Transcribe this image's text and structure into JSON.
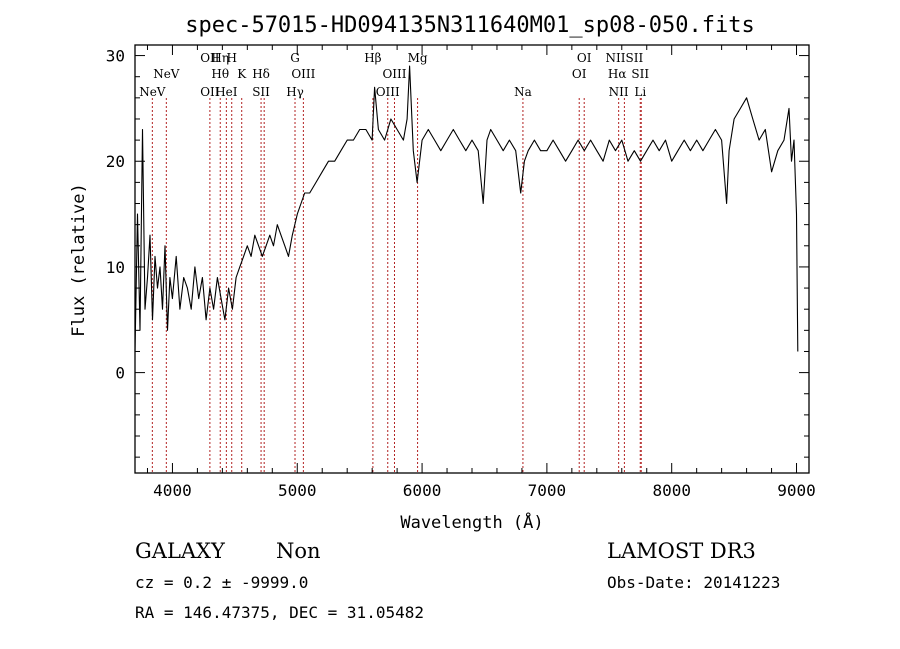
{
  "chart_data": {
    "type": "line",
    "title": "spec-57015-HD094135N311640M01_sp08-050.fits",
    "xlabel": "Wavelength (Å)",
    "ylabel": "Flux (relative)",
    "xlim": [
      3700,
      9100
    ],
    "ylim": [
      -9.5,
      31
    ],
    "xticks": [
      4000,
      5000,
      6000,
      7000,
      8000,
      9000
    ],
    "yticks": [
      0,
      10,
      20,
      30
    ],
    "grid": false,
    "legend": "none",
    "line_color": "#000000",
    "marker_color": "#b22222",
    "series": [
      {
        "x": [
          3700,
          3720,
          3740,
          3760,
          3780,
          3800,
          3820,
          3840,
          3860,
          3880,
          3900,
          3920,
          3940,
          3960,
          3980,
          4000,
          4030,
          4060,
          4090,
          4120,
          4150,
          4180,
          4210,
          4240,
          4270,
          4300,
          4330,
          4360,
          4390,
          4420,
          4450,
          4480,
          4510,
          4540,
          4570,
          4600,
          4630,
          4660,
          4690,
          4720,
          4750,
          4780,
          4810,
          4840,
          4870,
          4900,
          4930,
          4960,
          4980,
          5000,
          5030,
          5060,
          5100,
          5150,
          5200,
          5250,
          5300,
          5350,
          5400,
          5450,
          5500,
          5550,
          5600,
          5620,
          5650,
          5700,
          5750,
          5800,
          5850,
          5880,
          5900,
          5930,
          5960,
          5980,
          6000,
          6050,
          6100,
          6150,
          6200,
          6250,
          6300,
          6350,
          6400,
          6450,
          6490,
          6520,
          6550,
          6600,
          6650,
          6700,
          6750,
          6790,
          6820,
          6850,
          6900,
          6950,
          7000,
          7050,
          7100,
          7150,
          7200,
          7250,
          7300,
          7350,
          7400,
          7450,
          7500,
          7550,
          7600,
          7650,
          7700,
          7750,
          7800,
          7850,
          7900,
          7950,
          8000,
          8050,
          8100,
          8150,
          8200,
          8250,
          8300,
          8350,
          8400,
          8440,
          8460,
          8500,
          8550,
          8600,
          8650,
          8700,
          8750,
          8800,
          8850,
          8900,
          8940,
          8960,
          8980,
          9000,
          9010
        ],
        "y": [
          2,
          15,
          4,
          23,
          6,
          9,
          13,
          5,
          11,
          8,
          10,
          6,
          12,
          4,
          9,
          7,
          11,
          6,
          9,
          8,
          6,
          10,
          7,
          9,
          5,
          8,
          6,
          9,
          7,
          5,
          8,
          6,
          9,
          10,
          11,
          12,
          11,
          13,
          12,
          11,
          12,
          13,
          12,
          14,
          13,
          12,
          11,
          13,
          14,
          15,
          16,
          17,
          17,
          18,
          19,
          20,
          20,
          21,
          22,
          22,
          23,
          23,
          22,
          27,
          23,
          22,
          24,
          23,
          22,
          24,
          29,
          21,
          18,
          20,
          22,
          23,
          22,
          21,
          22,
          23,
          22,
          21,
          22,
          21,
          16,
          22,
          23,
          22,
          21,
          22,
          21,
          17,
          20,
          21,
          22,
          21,
          21,
          22,
          21,
          20,
          21,
          22,
          21,
          22,
          21,
          20,
          22,
          21,
          22,
          20,
          21,
          20,
          21,
          22,
          21,
          22,
          20,
          21,
          22,
          21,
          22,
          21,
          22,
          23,
          22,
          16,
          21,
          24,
          25,
          26,
          24,
          22,
          23,
          19,
          21,
          22,
          25,
          20,
          22,
          15,
          2
        ]
      }
    ],
    "lines_top": [
      {
        "label": "OII",
        "wl": 4300
      },
      {
        "label": "Hη",
        "wl": 4383
      },
      {
        "label": "H",
        "wl": 4475
      },
      {
        "label": "G",
        "wl": 4982
      },
      {
        "label": "Hβ",
        "wl": 5606
      },
      {
        "label": "Mg",
        "wl": 5964
      },
      {
        "label": "OI",
        "wl": 7299
      },
      {
        "label": "NIISII",
        "wl": 7621
      }
    ],
    "lines_mid": [
      {
        "label": "NeV",
        "wl": 3951
      },
      {
        "label": "Hθ",
        "wl": 4383
      },
      {
        "label": "K",
        "wl": 4555
      },
      {
        "label": "Hδ",
        "wl": 4710
      },
      {
        "label": "OIII",
        "wl": 5049
      },
      {
        "label": "OIII",
        "wl": 5779
      },
      {
        "label": "OI",
        "wl": 7259
      },
      {
        "label": "Hα",
        "wl": 7563
      },
      {
        "label": "SII",
        "wl": 7748
      }
    ],
    "lines_low": [
      {
        "label": "NeV",
        "wl": 3839
      },
      {
        "label": "OII",
        "wl": 4300
      },
      {
        "label": "HeI",
        "wl": 4432
      },
      {
        "label": "SII",
        "wl": 4710
      },
      {
        "label": "Hγ",
        "wl": 4982
      },
      {
        "label": "OIII",
        "wl": 5725
      },
      {
        "label": "Na",
        "wl": 6808
      },
      {
        "label": "NII",
        "wl": 7575
      },
      {
        "label": "Li",
        "wl": 7748
      }
    ],
    "vlines": [
      3839,
      3951,
      4300,
      4383,
      4432,
      4475,
      4555,
      4710,
      4735,
      4982,
      5049,
      5606,
      5725,
      5779,
      5964,
      6808,
      7259,
      7299,
      7575,
      7621,
      7748,
      7756
    ]
  },
  "footer": {
    "class_label": "GALAXY",
    "subclass": "Non",
    "survey": "LAMOST DR3",
    "cz": "cz = 0.2 ± -9999.0",
    "obs_date": "Obs-Date: 20141223",
    "radec": "RA = 146.47375, DEC =  31.05482"
  }
}
